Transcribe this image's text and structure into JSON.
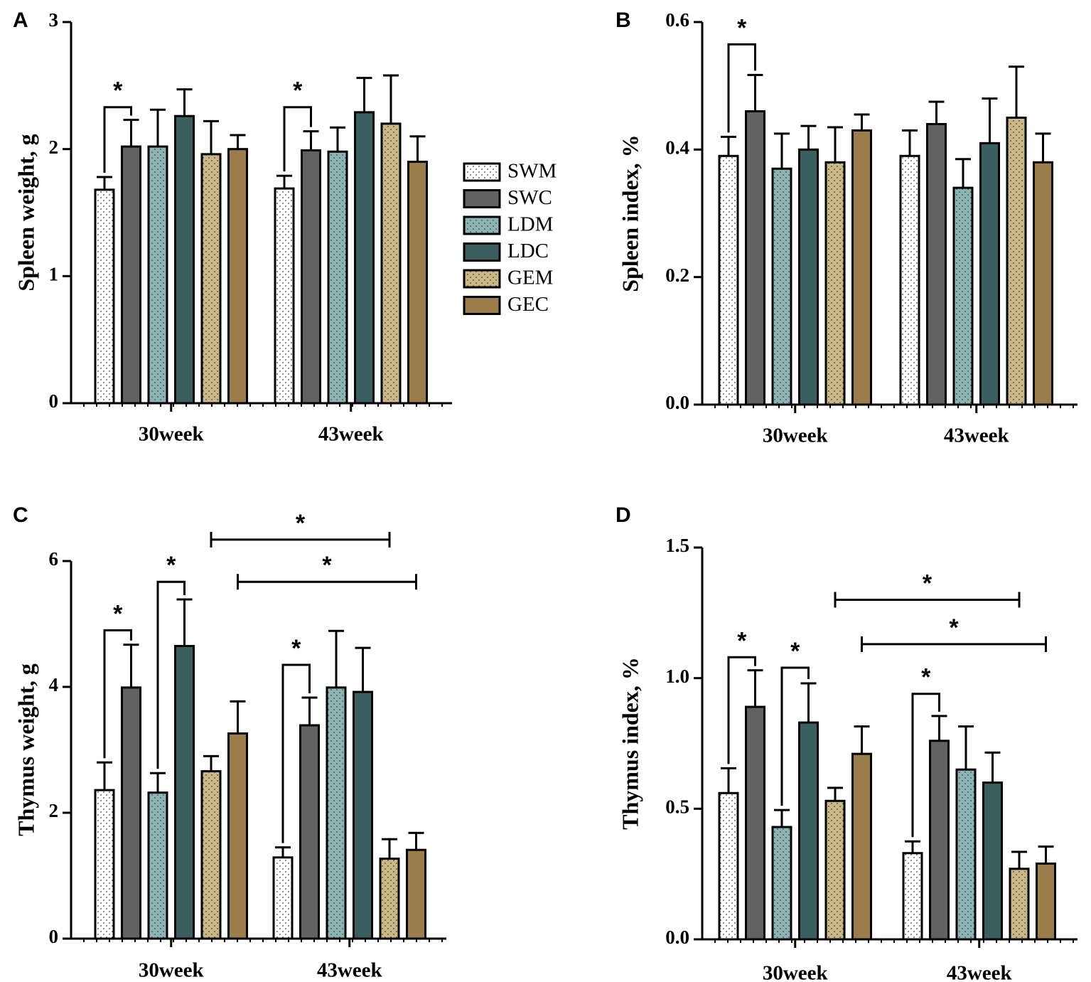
{
  "legend": [
    {
      "key": "SWM",
      "label": "SWM",
      "fill": "#ffffff",
      "dots": "#444444"
    },
    {
      "key": "SWC",
      "label": "SWC",
      "fill": "#626262",
      "dots": null
    },
    {
      "key": "LDM",
      "label": "LDM",
      "fill": "#8fb2b2",
      "dots": "#2e5050"
    },
    {
      "key": "LDC",
      "label": "LDC",
      "fill": "#3b5e5e",
      "dots": null
    },
    {
      "key": "GEM",
      "label": "GEM",
      "fill": "#c8b887",
      "dots": "#4a4128"
    },
    {
      "key": "GEC",
      "label": "GEC",
      "fill": "#9a7d4b",
      "dots": null
    }
  ],
  "chart_data": [
    {
      "panel": "A",
      "type": "bar",
      "categories": [
        "30week",
        "43week"
      ],
      "ylabel": "Spleen weight, g",
      "ylim": [
        0,
        3
      ],
      "yticks": [
        0,
        1,
        2,
        3
      ],
      "tick_decimals": 0,
      "series": [
        {
          "name": "SWM",
          "values": [
            1.68,
            1.69
          ],
          "errors": [
            0.1,
            0.1
          ]
        },
        {
          "name": "SWC",
          "values": [
            2.02,
            1.99
          ],
          "errors": [
            0.21,
            0.15
          ]
        },
        {
          "name": "LDM",
          "values": [
            2.02,
            1.98
          ],
          "errors": [
            0.29,
            0.19
          ]
        },
        {
          "name": "LDC",
          "values": [
            2.26,
            2.29
          ],
          "errors": [
            0.21,
            0.27
          ]
        },
        {
          "name": "GEM",
          "values": [
            1.96,
            2.2
          ],
          "errors": [
            0.26,
            0.38
          ]
        },
        {
          "name": "GEC",
          "values": [
            2.0,
            1.9
          ],
          "errors": [
            0.11,
            0.2
          ]
        }
      ],
      "significance": [
        {
          "from": [
            0,
            0
          ],
          "to": [
            0,
            1
          ],
          "label": "*",
          "level": 2.33
        },
        {
          "from": [
            1,
            0
          ],
          "to": [
            1,
            1
          ],
          "label": "*",
          "level": 2.33
        }
      ]
    },
    {
      "panel": "B",
      "type": "bar",
      "categories": [
        "30week",
        "43week"
      ],
      "ylabel": "Spleen index, %",
      "ylim": [
        0,
        0.6
      ],
      "yticks": [
        0,
        0.2,
        0.4,
        0.6
      ],
      "tick_decimals": 1,
      "series": [
        {
          "name": "SWM",
          "values": [
            0.39,
            0.39
          ],
          "errors": [
            0.03,
            0.04
          ]
        },
        {
          "name": "SWC",
          "values": [
            0.46,
            0.44
          ],
          "errors": [
            0.057,
            0.035
          ]
        },
        {
          "name": "LDM",
          "values": [
            0.37,
            0.34
          ],
          "errors": [
            0.055,
            0.045
          ]
        },
        {
          "name": "LDC",
          "values": [
            0.4,
            0.41
          ],
          "errors": [
            0.037,
            0.07
          ]
        },
        {
          "name": "GEM",
          "values": [
            0.38,
            0.45
          ],
          "errors": [
            0.055,
            0.08
          ]
        },
        {
          "name": "GEC",
          "values": [
            0.43,
            0.38
          ],
          "errors": [
            0.025,
            0.045
          ]
        }
      ],
      "significance": [
        {
          "from": [
            0,
            0
          ],
          "to": [
            0,
            1
          ],
          "label": "*",
          "level": 0.565
        }
      ]
    },
    {
      "panel": "C",
      "type": "bar",
      "categories": [
        "30week",
        "43week"
      ],
      "ylabel": "Thymus weight, g",
      "ylim": [
        0,
        6
      ],
      "yticks": [
        0,
        2,
        4,
        6
      ],
      "tick_decimals": 0,
      "series": [
        {
          "name": "SWM",
          "values": [
            2.36,
            1.29
          ],
          "errors": [
            0.44,
            0.16
          ]
        },
        {
          "name": "SWC",
          "values": [
            3.99,
            3.39
          ],
          "errors": [
            0.68,
            0.44
          ]
        },
        {
          "name": "LDM",
          "values": [
            2.32,
            3.99
          ],
          "errors": [
            0.31,
            0.9
          ]
        },
        {
          "name": "LDC",
          "values": [
            4.65,
            3.92
          ],
          "errors": [
            0.74,
            0.7
          ]
        },
        {
          "name": "GEM",
          "values": [
            2.66,
            1.27
          ],
          "errors": [
            0.24,
            0.31
          ]
        },
        {
          "name": "GEC",
          "values": [
            3.26,
            1.41
          ],
          "errors": [
            0.51,
            0.27
          ]
        }
      ],
      "significance": [
        {
          "from": [
            0,
            0
          ],
          "to": [
            0,
            1
          ],
          "label": "*",
          "level": 4.9
        },
        {
          "from": [
            0,
            2
          ],
          "to": [
            0,
            3
          ],
          "label": "*",
          "level": 5.67
        },
        {
          "from": [
            1,
            0
          ],
          "to": [
            1,
            1
          ],
          "label": "*",
          "level": 4.35
        },
        {
          "from": [
            0,
            4
          ],
          "to": [
            1,
            4
          ],
          "label": "*",
          "level": 6.34,
          "bracket": "flat"
        },
        {
          "from": [
            0,
            5
          ],
          "to": [
            1,
            5
          ],
          "label": "*",
          "level": 5.67,
          "bracket": "flat"
        }
      ]
    },
    {
      "panel": "D",
      "type": "bar",
      "categories": [
        "30week",
        "43week"
      ],
      "ylabel": "Thymus index, %",
      "ylim": [
        0,
        1.5
      ],
      "yticks": [
        0,
        0.5,
        1.0,
        1.5
      ],
      "tick_decimals": 1,
      "series": [
        {
          "name": "SWM",
          "values": [
            0.56,
            0.33
          ],
          "errors": [
            0.095,
            0.045
          ]
        },
        {
          "name": "SWC",
          "values": [
            0.89,
            0.76
          ],
          "errors": [
            0.14,
            0.095
          ]
        },
        {
          "name": "LDM",
          "values": [
            0.43,
            0.65
          ],
          "errors": [
            0.065,
            0.165
          ]
        },
        {
          "name": "LDC",
          "values": [
            0.83,
            0.6
          ],
          "errors": [
            0.15,
            0.115
          ]
        },
        {
          "name": "GEM",
          "values": [
            0.53,
            0.27
          ],
          "errors": [
            0.05,
            0.065
          ]
        },
        {
          "name": "GEC",
          "values": [
            0.71,
            0.29
          ],
          "errors": [
            0.105,
            0.065
          ]
        }
      ],
      "significance": [
        {
          "from": [
            0,
            0
          ],
          "to": [
            0,
            1
          ],
          "label": "*",
          "level": 1.08
        },
        {
          "from": [
            0,
            2
          ],
          "to": [
            0,
            3
          ],
          "label": "*",
          "level": 1.04
        },
        {
          "from": [
            1,
            0
          ],
          "to": [
            1,
            1
          ],
          "label": "*",
          "level": 0.94
        },
        {
          "from": [
            0,
            4
          ],
          "to": [
            1,
            4
          ],
          "label": "*",
          "level": 1.3,
          "bracket": "flat"
        },
        {
          "from": [
            0,
            5
          ],
          "to": [
            1,
            5
          ],
          "label": "*",
          "level": 1.13,
          "bracket": "flat"
        }
      ]
    }
  ]
}
